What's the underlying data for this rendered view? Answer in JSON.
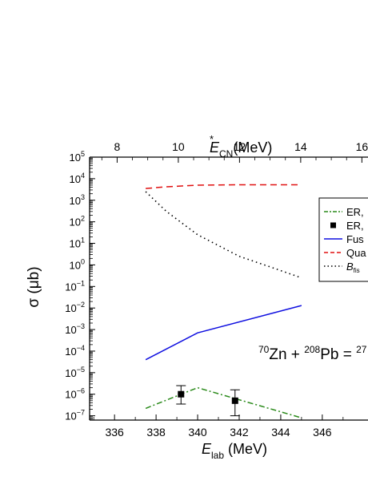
{
  "chart_data": {
    "type": "line",
    "x_bottom": {
      "label_main": "E",
      "label_sub": "lab",
      "label_unit": " (MeV)",
      "ticks": [
        336,
        338,
        340,
        342,
        344,
        346
      ],
      "range": [
        334.8,
        348.2
      ]
    },
    "x_top": {
      "label_main": "E",
      "label_sup": "*",
      "label_sub": "CN",
      "label_unit": "(MeV)",
      "ticks": [
        8,
        10,
        12,
        14,
        16
      ],
      "range": [
        7.1,
        16.2
      ]
    },
    "y": {
      "label": "σ (μb)",
      "scale": "log",
      "range_exp": [
        -7.2,
        5
      ],
      "tick_exps": [
        -7,
        -6,
        -5,
        -4,
        -3,
        -2,
        -1,
        0,
        1,
        2,
        3,
        4,
        5
      ]
    },
    "series": [
      {
        "name": "ER,",
        "style": "dash-dot",
        "color": "#2a8a1a",
        "x": [
          337.5,
          340.0,
          345.0
        ],
        "y": [
          2.2e-07,
          2e-06,
          8e-08
        ]
      },
      {
        "name": "ER,",
        "style": "markers",
        "color": "#000000",
        "x": [
          339.2,
          341.8
        ],
        "y": [
          1e-06,
          5e-07
        ],
        "err_low": [
          3.5e-07,
          1e-07
        ],
        "err_high": [
          2.5e-06,
          1.6e-06
        ]
      },
      {
        "name": "Fus",
        "style": "solid",
        "color": "#1010e0",
        "x": [
          337.5,
          340.0,
          345.0
        ],
        "y": [
          4e-05,
          0.0007,
          0.013
        ]
      },
      {
        "name": "Qua",
        "style": "dashed",
        "color": "#e01010",
        "x": [
          337.5,
          338.5,
          340.0,
          342.0,
          345.0
        ],
        "y": [
          3500,
          4200,
          5000,
          5200,
          5200
        ]
      },
      {
        "name": "B",
        "name_sub": "fis",
        "style": "dotted",
        "color": "#000000",
        "x": [
          337.5,
          338.5,
          340.0,
          342.0,
          343.5,
          345.0
        ],
        "y": [
          2500,
          300,
          25,
          2.5,
          0.8,
          0.25
        ]
      }
    ],
    "annotation": {
      "a1": "70",
      "e1": "Zn + ",
      "a2": "208",
      "e2": "Pb = ",
      "a3": "27"
    }
  }
}
